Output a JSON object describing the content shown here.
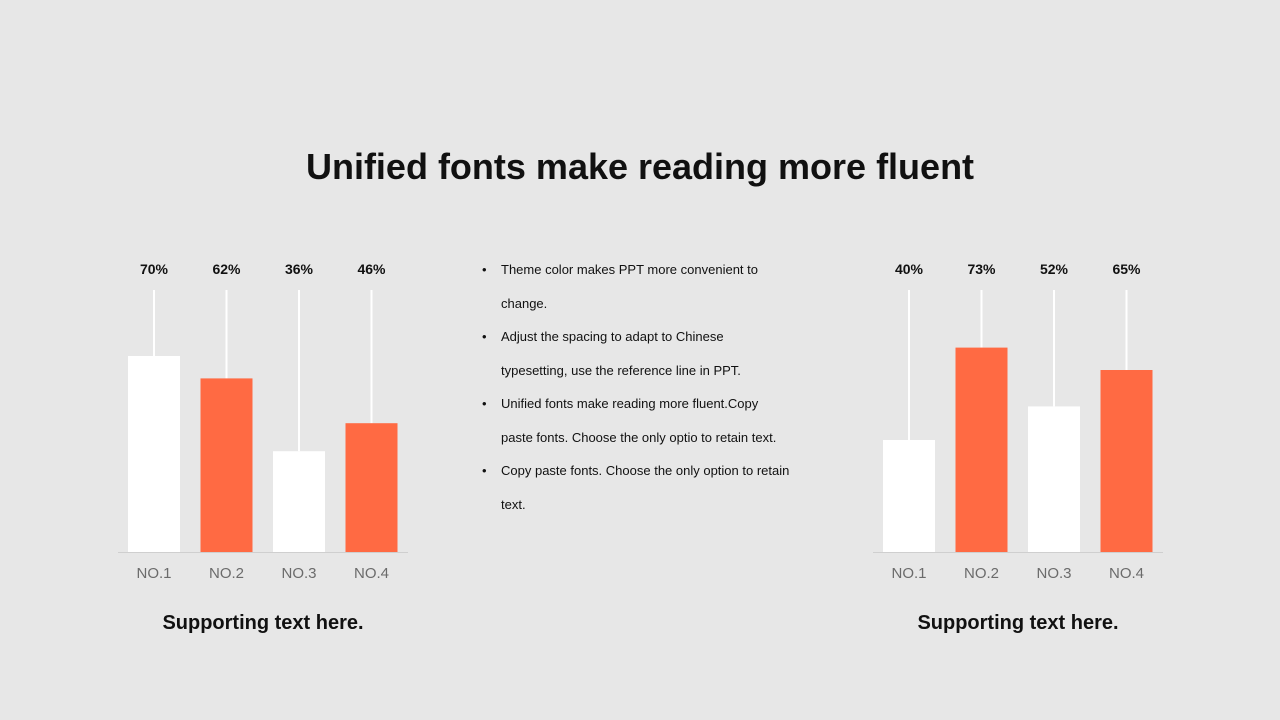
{
  "title": "Unified fonts make reading more fluent",
  "colors": {
    "background": "#e7e7e7",
    "accent": "#ff6a43",
    "neutral": "#ffffff"
  },
  "bullets": [
    "Theme color makes PPT more convenient to change.",
    "Adjust the spacing to adapt to Chinese typesetting, use the reference line in PPT.",
    "Unified fonts make reading more fluent.Copy paste fonts. Choose the only optio to retain text.",
    "Copy paste  fonts. Choose the only option to retain text."
  ],
  "chart_data": [
    {
      "type": "bar",
      "categories": [
        "NO.1",
        "NO.2",
        "NO.3",
        "NO.4"
      ],
      "values": [
        70,
        62,
        36,
        46
      ],
      "data_labels": [
        "70%",
        "62%",
        "36%",
        "46%"
      ],
      "bar_colors": [
        "#ffffff",
        "#ff6a43",
        "#ffffff",
        "#ff6a43"
      ],
      "caption": "Supporting text here.",
      "ylim": [
        0,
        100
      ],
      "grid": false
    },
    {
      "type": "bar",
      "categories": [
        "NO.1",
        "NO.2",
        "NO.3",
        "NO.4"
      ],
      "values": [
        40,
        73,
        52,
        65
      ],
      "data_labels": [
        "40%",
        "73%",
        "52%",
        "65%"
      ],
      "bar_colors": [
        "#ffffff",
        "#ff6a43",
        "#ffffff",
        "#ff6a43"
      ],
      "caption": "Supporting text here.",
      "ylim": [
        0,
        100
      ],
      "grid": false
    }
  ]
}
